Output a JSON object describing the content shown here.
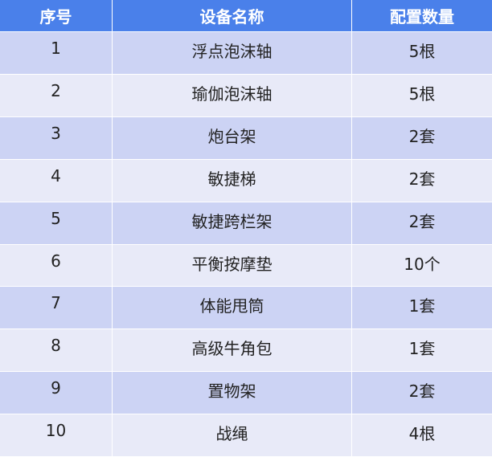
{
  "table": {
    "header": [
      "序号",
      "设备名称",
      "配置数量"
    ],
    "rows": [
      [
        "1",
        "浮点泡沫轴",
        "5根"
      ],
      [
        "2",
        "瑜伽泡沫轴",
        "5根"
      ],
      [
        "3",
        "炮台架",
        "2套"
      ],
      [
        "4",
        "敏捷梯",
        "2套"
      ],
      [
        "5",
        "敏捷跨栏架",
        "2套"
      ],
      [
        "6",
        "平衡按摩垫",
        "10个"
      ],
      [
        "7",
        "体能甩筒",
        "1套"
      ],
      [
        "8",
        "高级牛角包",
        "1套"
      ],
      [
        "9",
        "置物架",
        "2套"
      ],
      [
        "10",
        "战绳",
        "4根"
      ]
    ]
  }
}
